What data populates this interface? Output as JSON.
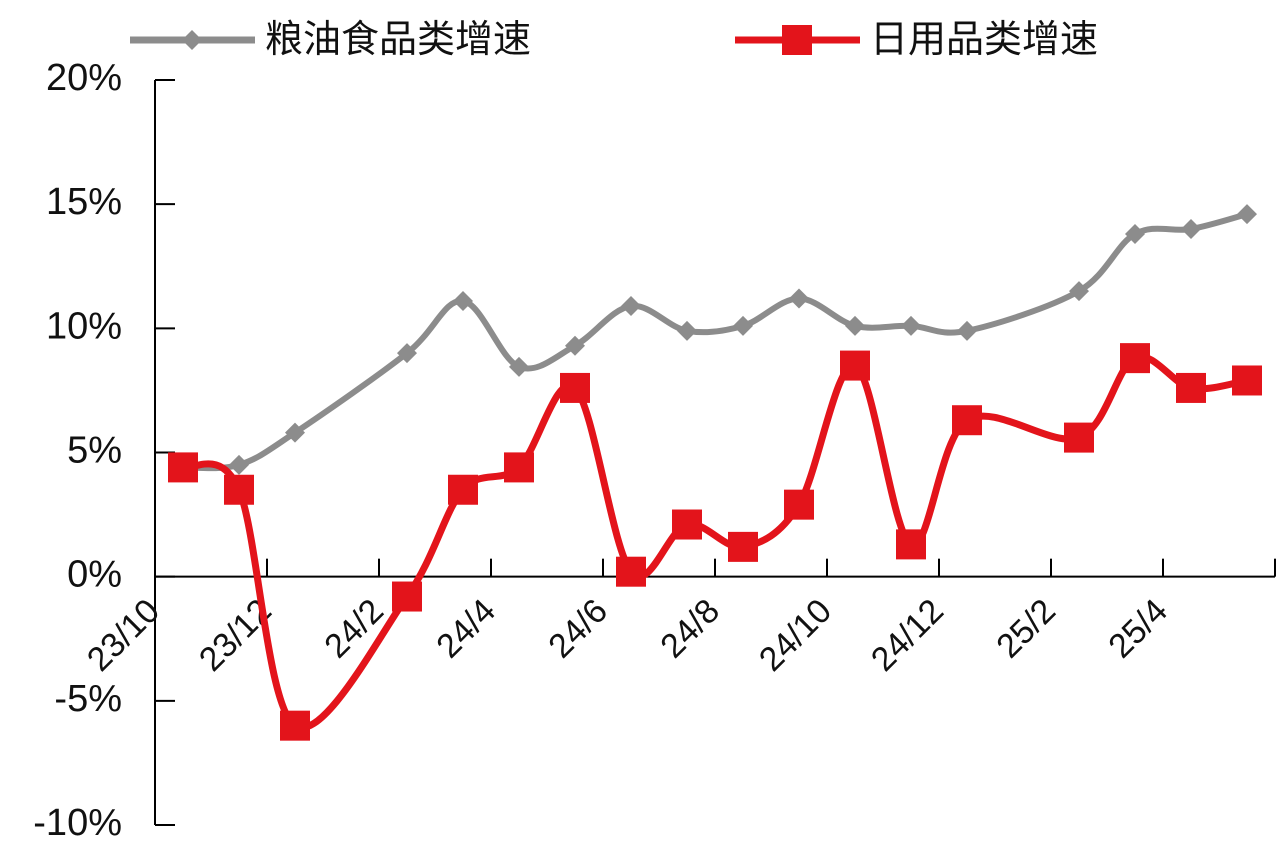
{
  "chart_data": {
    "type": "line",
    "categories": [
      "23/10",
      null,
      "23/12",
      null,
      "24/2",
      null,
      "24/4",
      null,
      "24/6",
      null,
      "24/8",
      null,
      "24/10",
      null,
      "24/12",
      null,
      "25/2",
      null,
      "25/4",
      null
    ],
    "series": [
      {
        "name": "粮油食品类增速",
        "color": "#8c8c8c",
        "marker": "diamond",
        "values": [
          4.4,
          4.5,
          5.8,
          null,
          9.0,
          11.1,
          8.45,
          9.3,
          10.9,
          9.9,
          10.1,
          11.2,
          10.1,
          10.1,
          9.9,
          null,
          11.5,
          13.8,
          14.0,
          14.6
        ]
      },
      {
        "name": "日用品类增速",
        "color": "#e3141b",
        "marker": "square",
        "values": [
          4.4,
          3.5,
          -6.0,
          null,
          -0.8,
          3.5,
          4.4,
          7.6,
          0.2,
          2.1,
          1.2,
          2.9,
          8.5,
          1.3,
          6.3,
          null,
          5.6,
          8.8,
          7.6,
          7.9
        ]
      }
    ],
    "connect_gaps": true,
    "smooth": true,
    "ylim": [
      -10,
      20
    ],
    "yticks": [
      {
        "value": -10,
        "label": "-10%"
      },
      {
        "value": -5,
        "label": "-5%"
      },
      {
        "value": 0,
        "label": "0%"
      },
      {
        "value": 5,
        "label": "5%"
      },
      {
        "value": 10,
        "label": "10%"
      },
      {
        "value": 15,
        "label": "15%"
      },
      {
        "value": 20,
        "label": "20%"
      }
    ],
    "grid": false,
    "legend": "top"
  }
}
